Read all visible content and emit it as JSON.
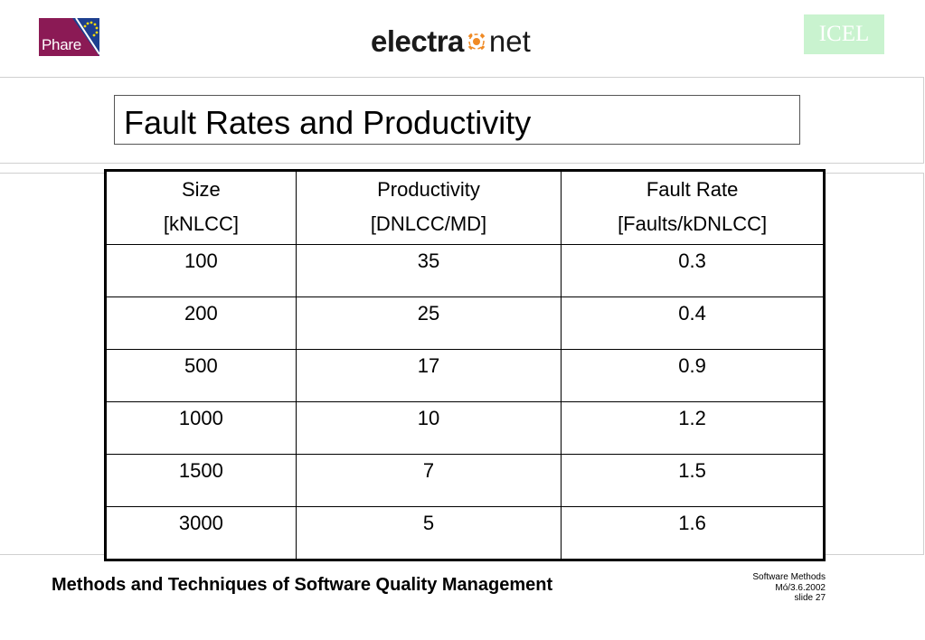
{
  "logos": {
    "phare": "Phare",
    "electra_bold": "electra",
    "electra_light": "net",
    "icel": "ICEL"
  },
  "slide": {
    "title": "Fault Rates and Productivity"
  },
  "table": {
    "headers": [
      {
        "line1": "Size",
        "line2": "[kNLCC]"
      },
      {
        "line1": "Productivity",
        "line2": "[DNLCC/MD]"
      },
      {
        "line1": "Fault Rate",
        "line2": "[Faults/kDNLCC]"
      }
    ],
    "rows": [
      {
        "size": "100",
        "productivity": "35",
        "fault_rate": "0.3"
      },
      {
        "size": "200",
        "productivity": "25",
        "fault_rate": "0.4"
      },
      {
        "size": "500",
        "productivity": "17",
        "fault_rate": "0.9"
      },
      {
        "size": "1000",
        "productivity": "10",
        "fault_rate": "1.2"
      },
      {
        "size": "1500",
        "productivity": "7",
        "fault_rate": "1.5"
      },
      {
        "size": "3000",
        "productivity": "5",
        "fault_rate": "1.6"
      }
    ]
  },
  "footer": {
    "title": "Methods and Techniques of Software Quality Management",
    "info_line1": "Software Methods",
    "info_line2": "Mó/3.6.2002",
    "info_line3": "slide 27"
  },
  "colors": {
    "phare_bg": "#8b1a55",
    "icel_bg": "#c9f3cf",
    "electra_accent": "#f08a24"
  }
}
